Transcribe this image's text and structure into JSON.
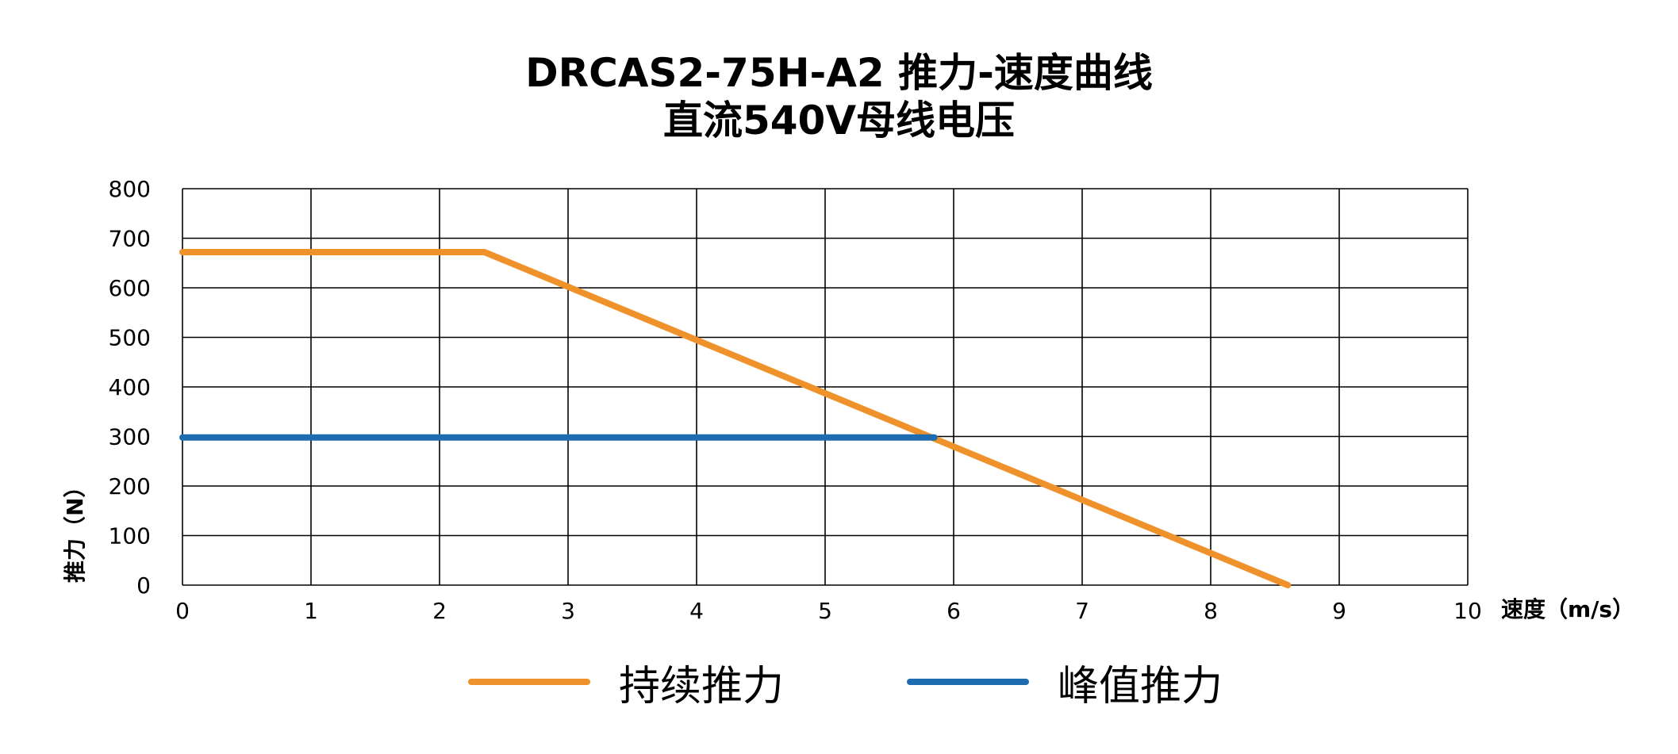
{
  "chart_data": {
    "type": "line",
    "title": "DRCAS2-75H-A2 推力-速度曲线",
    "subtitle": "直流540V母线电压",
    "xlabel": "速度（m/s）",
    "ylabel": "推力（N）",
    "xlim": [
      0,
      10
    ],
    "ylim": [
      0,
      800
    ],
    "x_ticks": [
      "0",
      "1",
      "2",
      "3",
      "4",
      "5",
      "6",
      "7",
      "8",
      "9",
      "10"
    ],
    "y_ticks": [
      "0",
      "100",
      "200",
      "300",
      "400",
      "500",
      "600",
      "700",
      "800"
    ],
    "grid": true,
    "legend_position": "bottom",
    "series": [
      {
        "name": "持续推力",
        "color": "#F0922B",
        "x": [
          0,
          2.35,
          8.6
        ],
        "y": [
          672,
          672,
          0
        ]
      },
      {
        "name": "峰值推力",
        "color": "#1E6DB0",
        "x": [
          0,
          5.85
        ],
        "y": [
          298,
          298
        ]
      }
    ]
  }
}
